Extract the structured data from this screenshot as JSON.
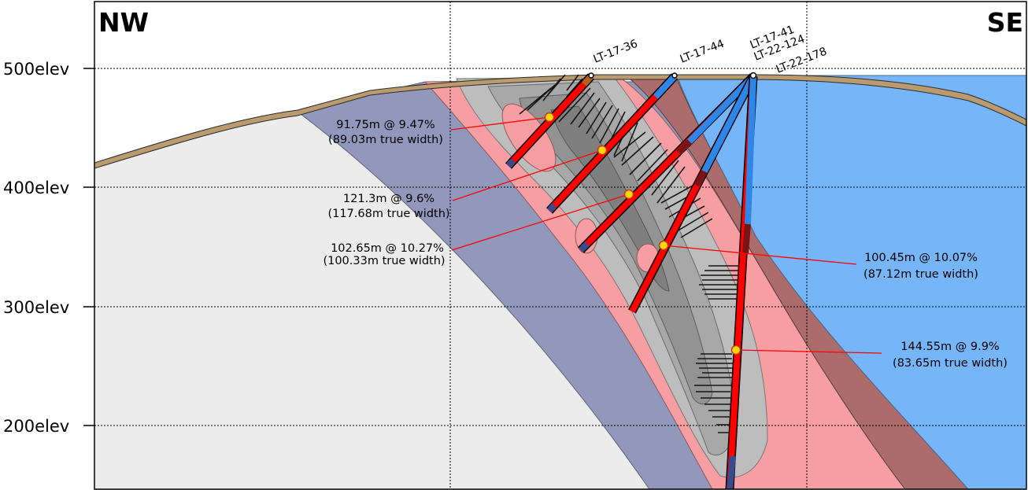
{
  "directions": {
    "left": "NW",
    "right": "SE"
  },
  "elevations": [
    "500elev",
    "400elev",
    "300elev",
    "200elev"
  ],
  "holes": [
    "LT-17-36",
    "LT-17-44",
    "LT-17-41",
    "LT-22-124",
    "LT-22-178"
  ],
  "intercepts": [
    {
      "grade": "91.75m @ 9.47%",
      "true_width": "(89.03m true width)"
    },
    {
      "grade": "121.3m @ 9.6%",
      "true_width": "(117.68m true width)"
    },
    {
      "grade": "102.65m @ 10.27%",
      "true_width": "(100.33m true width)"
    },
    {
      "grade": "100.45m @ 10.07%",
      "true_width": "(87.12m true width)"
    },
    {
      "grade": "144.55m @ 9.9%",
      "true_width": "(83.65m true width)"
    }
  ],
  "colors": {
    "left_unit": "#ececec",
    "blue_grey_unit": "#9198bb",
    "pink_zone": "#f79ea2",
    "dark_red_zone": "#ac6c6c",
    "right_unit": "#76b6f8",
    "mineralized_core": "#bdbdbd",
    "overburden": "#b99b6f",
    "ore_interval": "#ff0000",
    "waste_interval": "#2d87e8",
    "intercept_marker": "#ffd700"
  }
}
